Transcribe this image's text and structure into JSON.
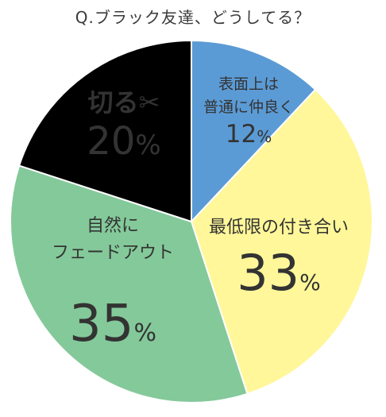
{
  "chart_data": {
    "type": "pie",
    "title": "Q.ブラック友達、どうしてる？",
    "slices": [
      {
        "label_lines": [
          "表面上は",
          "普通に仲良く"
        ],
        "value": 12,
        "value_text": "12",
        "unit": "%",
        "color": "#5b9bd5"
      },
      {
        "label_lines": [
          "最低限の付き合い"
        ],
        "value": 33,
        "value_text": "33",
        "unit": "%",
        "color": "#fff799"
      },
      {
        "label_lines": [
          "自然に",
          "フェードアウト"
        ],
        "value": 35,
        "value_text": "35",
        "unit": "%",
        "color": "#84c99a"
      },
      {
        "label_lines": [
          "切る✂"
        ],
        "value": 20,
        "value_text": "20",
        "unit": "%",
        "color": "#000000"
      }
    ],
    "start_angle_deg": 0,
    "direction": "clockwise"
  }
}
